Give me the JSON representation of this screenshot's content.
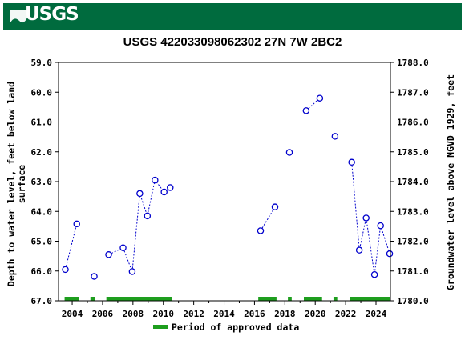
{
  "header": {
    "logo_text": "USGS",
    "logo_icon": "usgs-wave-logo-icon",
    "brand_color": "#006b3e"
  },
  "chart_data": {
    "type": "scatter",
    "title": "USGS 422033098062302 27N 7W 2BC2",
    "ylabel_left_line1": "Depth to water level, feet below land",
    "ylabel_left_line2": "surface",
    "ylabel_right": "Groundwater level above NGVD 1929, feet",
    "xlim": [
      2003.1,
      2024.95
    ],
    "ylim_left": [
      59.0,
      67.0
    ],
    "ylim_right": [
      1788.0,
      1780.0
    ],
    "left_inverted": true,
    "x_ticks": [
      "2004",
      "2006",
      "2008",
      "2010",
      "2012",
      "2014",
      "2016",
      "2018",
      "2020",
      "2022",
      "2024"
    ],
    "y_ticks_left": [
      "59.0",
      "60.0",
      "61.0",
      "62.0",
      "63.0",
      "64.0",
      "65.0",
      "66.0",
      "67.0"
    ],
    "y_ticks_right": [
      "1788.0",
      "1787.0",
      "1786.0",
      "1785.0",
      "1784.0",
      "1783.0",
      "1782.0",
      "1781.0",
      "1780.0"
    ],
    "grid": false,
    "series": [
      {
        "marker": "open-circle",
        "line": "dotted",
        "color": "#0000cc",
        "segments": [
          {
            "x": [
              2003.55,
              2004.3
            ],
            "y": [
              65.95,
              64.42
            ]
          },
          {
            "x": [
              2005.45
            ],
            "y": [
              66.18
            ]
          },
          {
            "x": [
              2006.4,
              2007.35,
              2007.95,
              2008.45,
              2008.95,
              2009.45,
              2010.05,
              2010.45
            ],
            "y": [
              65.45,
              65.22,
              66.02,
              63.4,
              64.15,
              62.95,
              63.35,
              63.2
            ]
          },
          {
            "x": [
              2016.4,
              2017.35
            ],
            "y": [
              64.65,
              63.85
            ]
          },
          {
            "x": [
              2018.3
            ],
            "y": [
              62.02
            ]
          },
          {
            "x": [
              2019.4,
              2020.3
            ],
            "y": [
              60.62,
              60.2
            ]
          },
          {
            "x": [
              2021.3
            ],
            "y": [
              61.48
            ]
          },
          {
            "x": [
              2022.4,
              2022.9,
              2023.35,
              2023.9,
              2024.3,
              2024.9
            ],
            "y": [
              62.35,
              65.3,
              64.22,
              66.12,
              64.48,
              65.42
            ]
          }
        ]
      }
    ],
    "approved_periods": [
      [
        2003.5,
        2004.45
      ],
      [
        2005.2,
        2005.5
      ],
      [
        2006.25,
        2010.55
      ],
      [
        2016.25,
        2017.45
      ],
      [
        2018.2,
        2018.45
      ],
      [
        2019.25,
        2020.45
      ],
      [
        2021.2,
        2021.45
      ],
      [
        2022.3,
        2024.95
      ]
    ],
    "approved_color": "#1e9e1e",
    "legend": {
      "label": "Period of approved data",
      "placement": "bottom-center"
    }
  }
}
